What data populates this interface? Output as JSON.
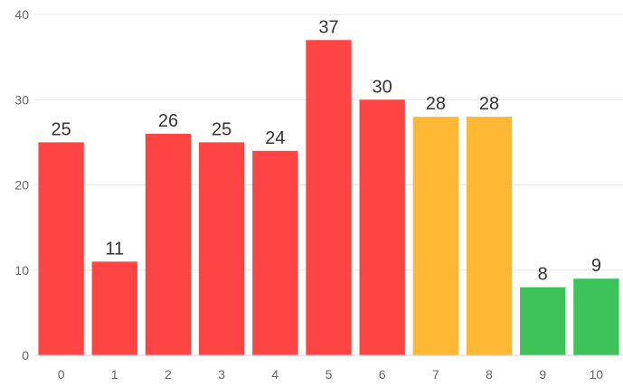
{
  "chart_data": {
    "type": "bar",
    "title": "",
    "xlabel": "",
    "ylabel": "",
    "categories": [
      "0",
      "1",
      "2",
      "3",
      "4",
      "5",
      "6",
      "7",
      "8",
      "9",
      "10"
    ],
    "values": [
      25,
      11,
      26,
      25,
      24,
      37,
      30,
      28,
      28,
      8,
      9
    ],
    "bar_colors": [
      "#ff4444",
      "#ff4444",
      "#ff4444",
      "#ff4444",
      "#ff4444",
      "#ff4444",
      "#ff4444",
      "#ffb833",
      "#ffb833",
      "#3cc45a",
      "#3cc45a"
    ],
    "ylim": [
      0,
      40
    ],
    "yticks": [
      0,
      10,
      20,
      30,
      40
    ],
    "grid": true,
    "legend": "none"
  }
}
